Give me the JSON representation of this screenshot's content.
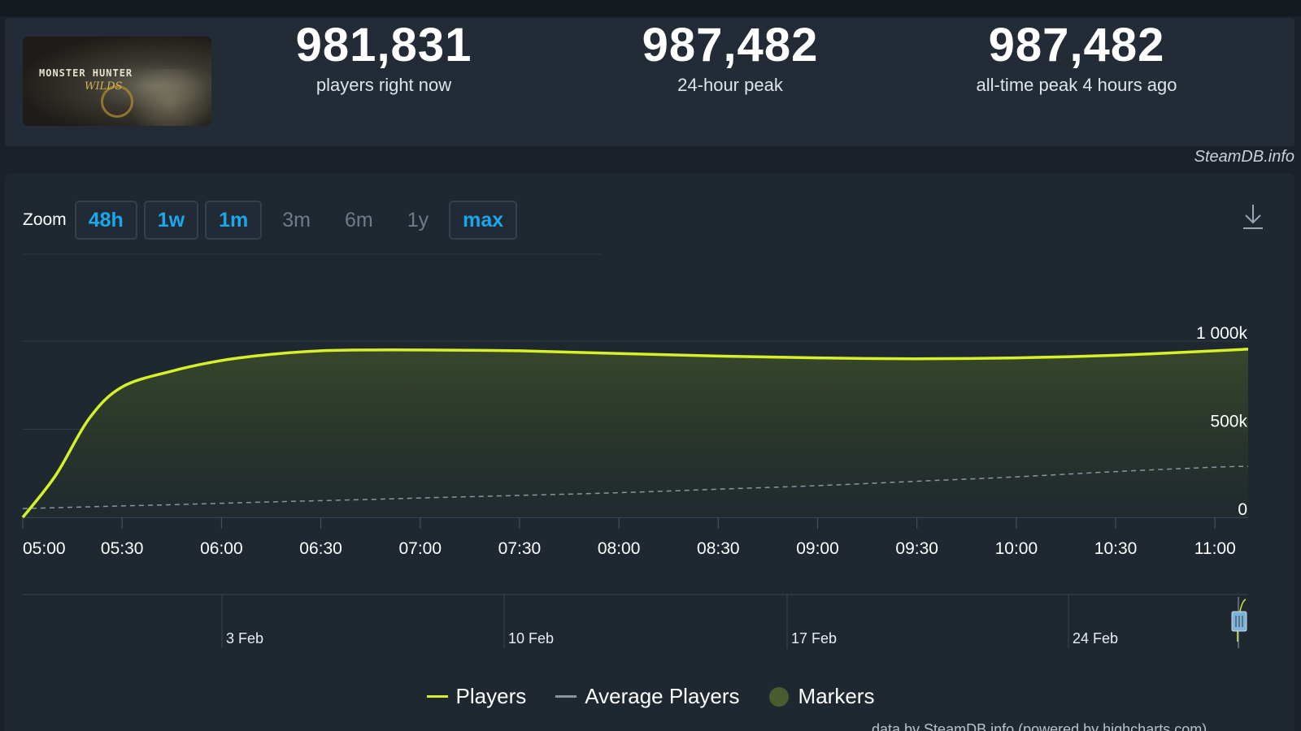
{
  "stats": {
    "current": {
      "value": "981,831",
      "label": "players right now"
    },
    "peak24": {
      "value": "987,482",
      "label": "24-hour peak"
    },
    "alltime": {
      "value": "987,482",
      "label": "all-time peak 4 hours ago"
    }
  },
  "game_image": {
    "logo_text": "MONSTER HUNTER",
    "logo_sub": "WILDS"
  },
  "credit": "SteamDB.info",
  "zoom": {
    "label": "Zoom",
    "buttons": [
      {
        "label": "48h",
        "active": true
      },
      {
        "label": "1w",
        "active": true
      },
      {
        "label": "1m",
        "active": true
      },
      {
        "label": "3m",
        "active": false
      },
      {
        "label": "6m",
        "active": false
      },
      {
        "label": "1y",
        "active": false
      },
      {
        "label": "max",
        "active": true
      }
    ]
  },
  "icons": {
    "download": "download-icon"
  },
  "colors": {
    "players": "#d4f12a",
    "average": "#8a949e",
    "markers": "#4a5b30",
    "zoom_active": "#1aa7ec"
  },
  "chart_data": {
    "type": "line",
    "x": [
      "05:00",
      "05:10",
      "05:20",
      "05:30",
      "05:45",
      "06:00",
      "06:15",
      "06:30",
      "06:45",
      "07:00",
      "07:30",
      "08:00",
      "08:30",
      "09:00",
      "09:30",
      "10:00",
      "10:30",
      "11:00",
      "11:10"
    ],
    "series": [
      {
        "name": "Players",
        "values": [
          0,
          240,
          560,
          740,
          830,
          890,
          925,
          945,
          950,
          950,
          945,
          930,
          915,
          905,
          900,
          905,
          920,
          945,
          955
        ]
      },
      {
        "name": "Average Players",
        "values": [
          50,
          55,
          60,
          65,
          72,
          80,
          88,
          95,
          102,
          110,
          125,
          140,
          160,
          180,
          205,
          230,
          260,
          285,
          290
        ]
      }
    ],
    "y_ticks": [
      "0",
      "500k",
      "1 000k"
    ],
    "ylim": [
      0,
      1000
    ],
    "x_ticks": [
      "05:00",
      "05:30",
      "06:00",
      "06:30",
      "07:00",
      "07:30",
      "08:00",
      "08:30",
      "09:00",
      "09:30",
      "10:00",
      "10:30",
      "11:00"
    ],
    "navigator_labels": [
      "3 Feb",
      "10 Feb",
      "17 Feb",
      "24 Feb"
    ],
    "grid": true,
    "legend_position": "bottom-center"
  },
  "legend": {
    "players": "Players",
    "average": "Average Players",
    "markers": "Markers"
  },
  "footer": "data by SteamDB.info (powered by highcharts.com)"
}
